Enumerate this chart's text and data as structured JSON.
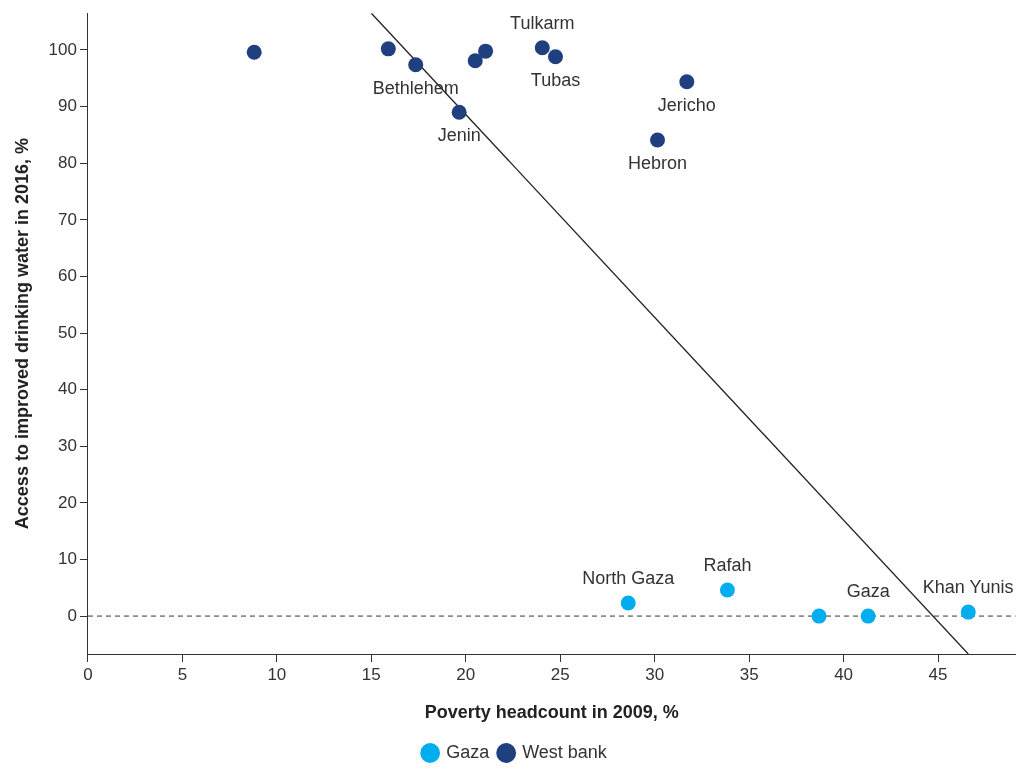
{
  "chart_data": {
    "type": "scatter",
    "xlabel": "Poverty headcount in 2009, %",
    "ylabel": "Access to improved drinking water in 2016, %",
    "xlim": [
      0,
      49.1
    ],
    "ylim": [
      -6.7,
      106.5
    ],
    "xticks": [
      0,
      5,
      10,
      15,
      20,
      25,
      30,
      35,
      40,
      45
    ],
    "yticks": [
      0,
      10,
      20,
      30,
      40,
      50,
      60,
      70,
      80,
      90,
      100
    ],
    "grid": false,
    "legend": "bottom",
    "marker": "circle",
    "series": [
      {
        "name": "Gaza",
        "color": "#00aeef",
        "x": [
          28.6,
          33.85,
          38.7,
          41.3,
          46.6
        ],
        "values": [
          2.3,
          4.6,
          0,
          0,
          0.7
        ]
      },
      {
        "name": "West bank",
        "color": "#1f3f7f",
        "x": [
          8.8,
          15.9,
          17.35,
          19.65,
          20.5,
          21.05,
          24.05,
          24.75,
          31.7,
          30.15
        ],
        "values": [
          99.6,
          100.2,
          97.4,
          89.0,
          98.1,
          99.8,
          100.4,
          98.8,
          94.4,
          84.1
        ]
      },
      {
        "type": "line",
        "color": "#222222",
        "x": [
          15.0,
          46.6
        ],
        "values": [
          106.5,
          -6.7
        ],
        "marker": "none"
      }
    ],
    "ref_lines": [
      {
        "axis": "y",
        "value": 0,
        "line_style": "dashed",
        "color": "#333333"
      }
    ],
    "annotations": [
      {
        "text": "Tulkarm",
        "x": 24.05,
        "y": 100.4
      },
      {
        "text": "Tubas",
        "x": 24.75,
        "y": 98.8
      },
      {
        "text": "Bethlehem",
        "x": 17.35,
        "y": 97.4
      },
      {
        "text": "Jenin",
        "x": 19.65,
        "y": 89.0
      },
      {
        "text": "Jericho",
        "x": 31.7,
        "y": 94.4
      },
      {
        "text": "Hebron",
        "x": 30.15,
        "y": 84.1
      },
      {
        "text": "North Gaza",
        "x": 28.6,
        "y": 2.3
      },
      {
        "text": "Rafah",
        "x": 33.85,
        "y": 4.6
      },
      {
        "text": "Gaza",
        "x": 41.3,
        "y": 0
      },
      {
        "text": "Khan Yunis",
        "x": 46.6,
        "y": 0.7
      }
    ]
  }
}
